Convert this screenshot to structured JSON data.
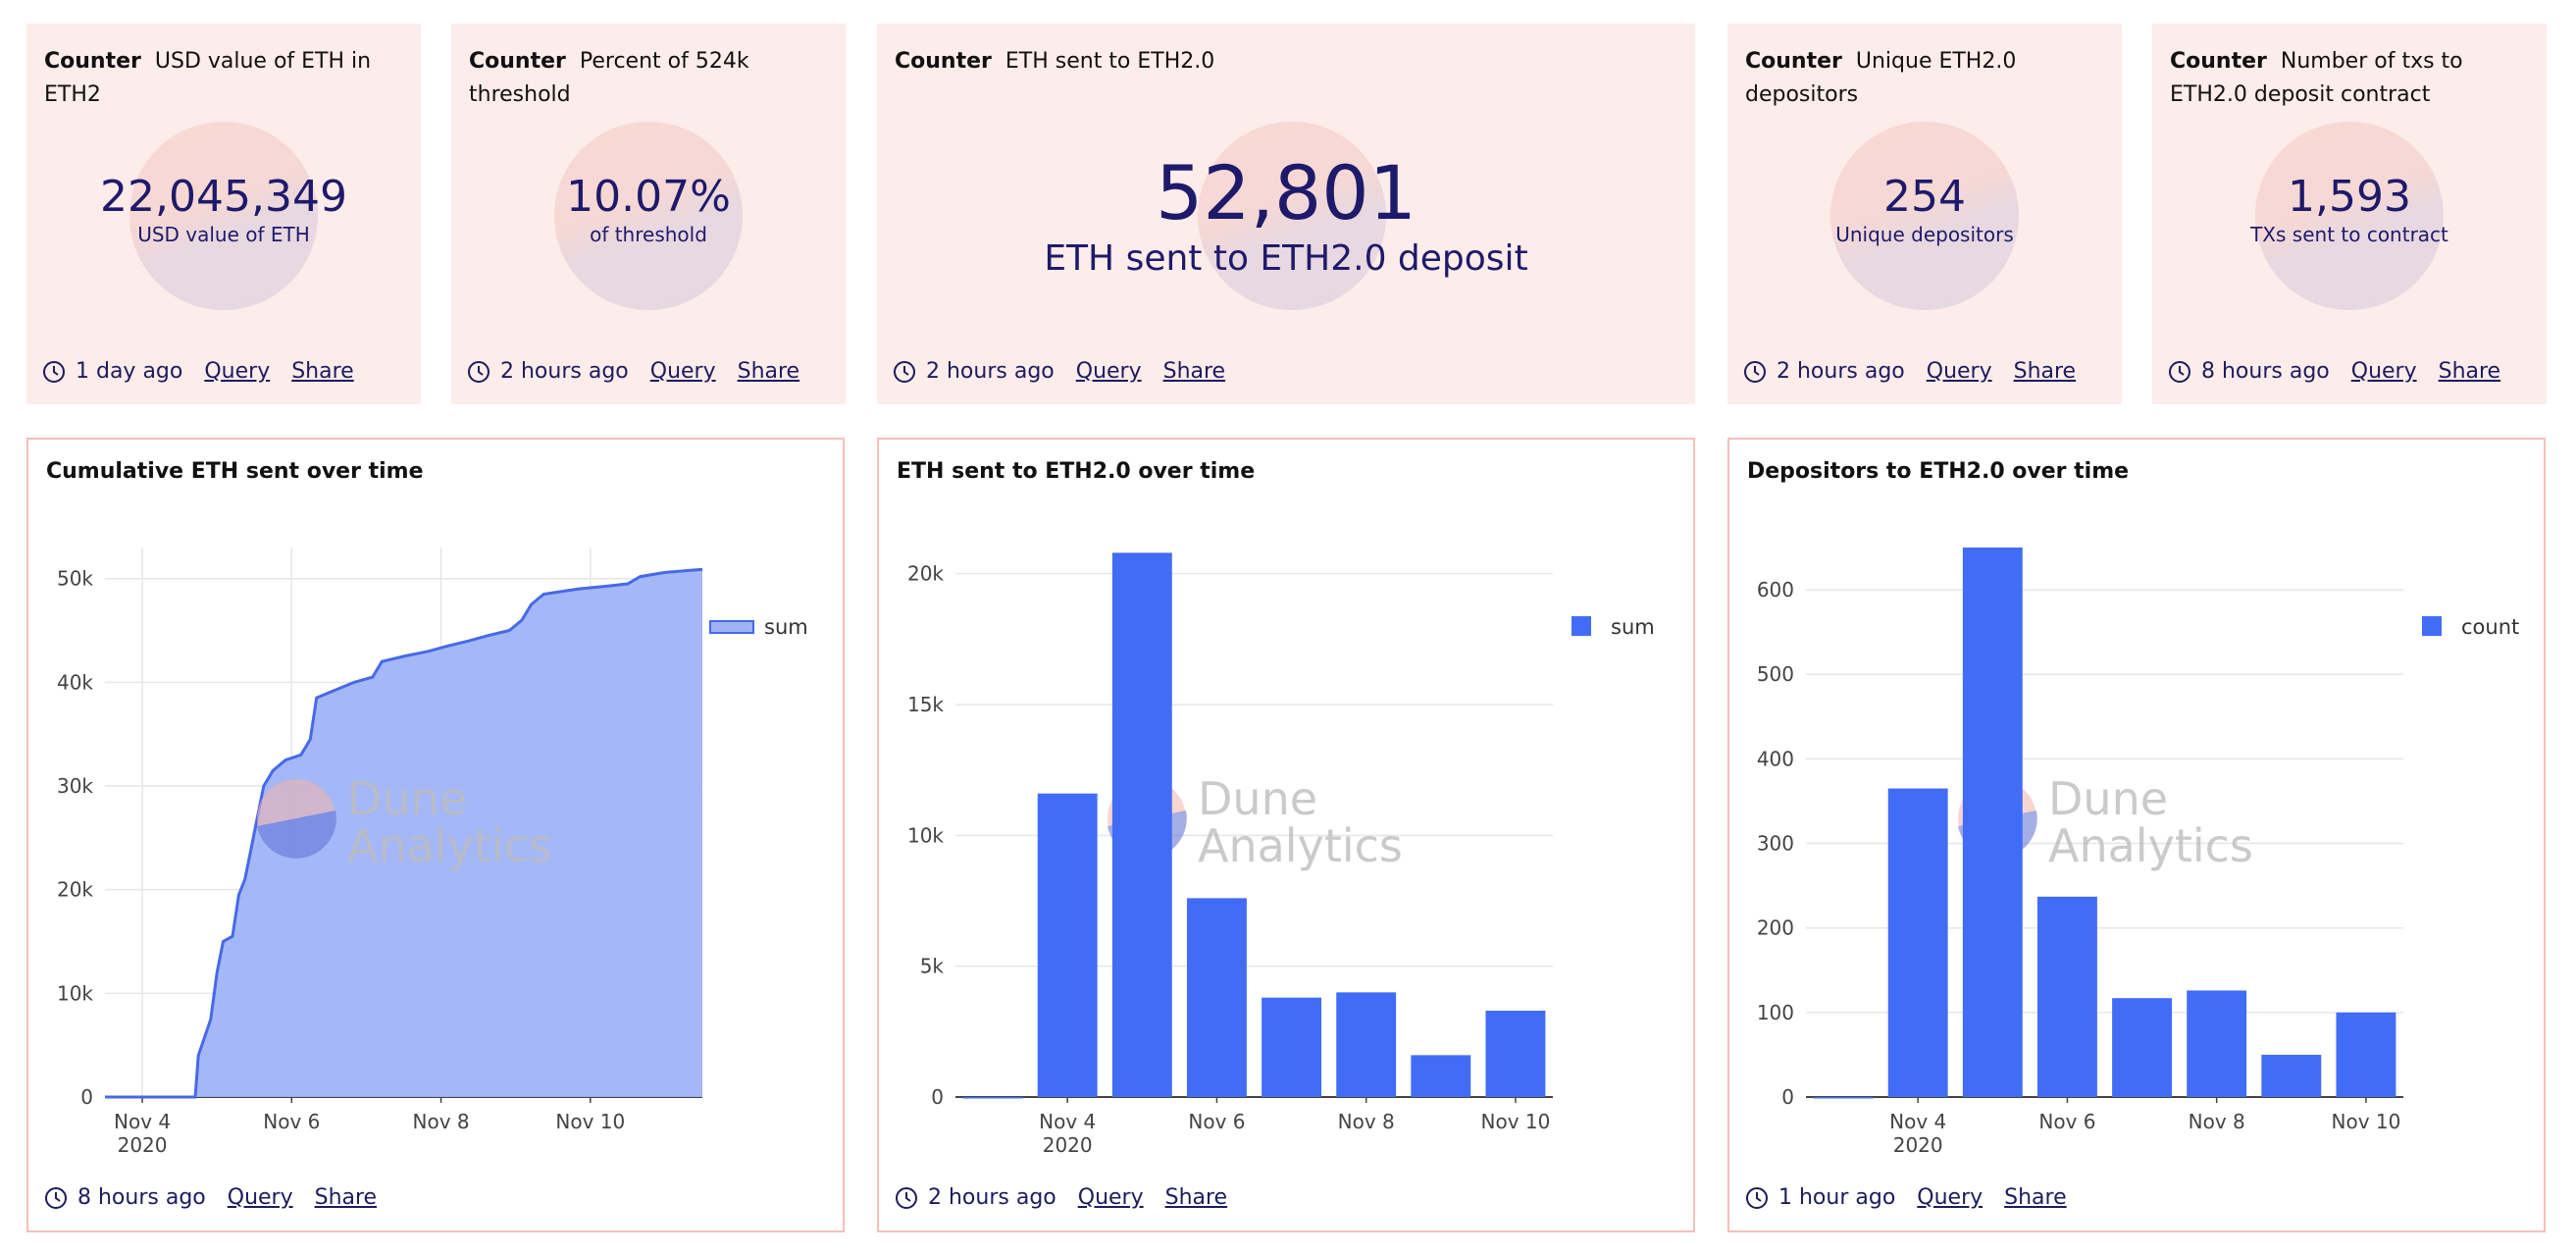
{
  "colors": {
    "counter_bg": "#fcecea",
    "border": "#f4c0b9",
    "bar": "#416cf5",
    "area": "#9fb3f5",
    "line": "#4669e9",
    "text": "#1e1a6b"
  },
  "icons": {
    "footer": "clock-icon",
    "watermark": "dune-logo-icon"
  },
  "counters": [
    {
      "kind": "Counter",
      "title": "USD value of ETH in ETH2",
      "value": "22,045,349",
      "sub": "USD value of ETH",
      "time": "1 day ago",
      "query": "Query",
      "share": "Share"
    },
    {
      "kind": "Counter",
      "title": "Percent of 524k threshold",
      "value": "10.07%",
      "sub": "of threshold",
      "time": "2 hours ago",
      "query": "Query",
      "share": "Share"
    },
    {
      "kind": "Counter",
      "title": "ETH sent to ETH2.0",
      "value": "52,801",
      "sub": "ETH sent to ETH2.0 deposit",
      "time": "2 hours ago",
      "query": "Query",
      "share": "Share"
    },
    {
      "kind": "Counter",
      "title": "Unique ETH2.0 depositors",
      "value": "254",
      "sub": "Unique depositors",
      "time": "2 hours ago",
      "query": "Query",
      "share": "Share"
    },
    {
      "kind": "Counter",
      "title": "Number of txs to ETH2.0 deposit contract",
      "value": "1,593",
      "sub": "TXs sent to contract",
      "time": "8 hours ago",
      "query": "Query",
      "share": "Share"
    }
  ],
  "charts": [
    {
      "title": "Cumulative ETH sent over time",
      "time": "8 hours ago",
      "query": "Query",
      "share": "Share"
    },
    {
      "title": "ETH sent to ETH2.0 over time",
      "time": "2 hours ago",
      "query": "Query",
      "share": "Share"
    },
    {
      "title": "Depositors to ETH2.0 over time",
      "time": "1 hour ago",
      "query": "Query",
      "share": "Share"
    }
  ],
  "watermark": {
    "line1": "Dune",
    "line2": "Analytics"
  },
  "chart_data": [
    {
      "type": "area",
      "title": "Cumulative ETH sent over time",
      "series": [
        {
          "name": "sum",
          "points": [
            [
              "2020-11-03T12:00",
              0
            ],
            [
              "2020-11-04T12:00",
              0
            ],
            [
              "2020-11-04T17:00",
              0
            ],
            [
              "2020-11-04T18:00",
              4000
            ],
            [
              "2020-11-04T22:00",
              7500
            ],
            [
              "2020-11-05T00:00",
              12000
            ],
            [
              "2020-11-05T02:00",
              15000
            ],
            [
              "2020-11-05T05:00",
              15500
            ],
            [
              "2020-11-05T07:00",
              19500
            ],
            [
              "2020-11-05T09:00",
              21000
            ],
            [
              "2020-11-05T11:00",
              24000
            ],
            [
              "2020-11-05T13:00",
              27000
            ],
            [
              "2020-11-05T15:00",
              30000
            ],
            [
              "2020-11-05T18:00",
              31500
            ],
            [
              "2020-11-05T22:00",
              32500
            ],
            [
              "2020-11-06T03:00",
              33000
            ],
            [
              "2020-11-06T06:00",
              34500
            ],
            [
              "2020-11-06T08:00",
              38500
            ],
            [
              "2020-11-06T12:00",
              39000
            ],
            [
              "2020-11-06T16:00",
              39500
            ],
            [
              "2020-11-06T20:00",
              40000
            ],
            [
              "2020-11-07T02:00",
              40500
            ],
            [
              "2020-11-07T05:00",
              42000
            ],
            [
              "2020-11-07T12:00",
              42500
            ],
            [
              "2020-11-07T20:00",
              43000
            ],
            [
              "2020-11-08T02:00",
              43500
            ],
            [
              "2020-11-08T09:00",
              44000
            ],
            [
              "2020-11-08T15:00",
              44500
            ],
            [
              "2020-11-08T22:00",
              45000
            ],
            [
              "2020-11-09T02:00",
              46000
            ],
            [
              "2020-11-09T05:00",
              47500
            ],
            [
              "2020-11-09T09:00",
              48500
            ],
            [
              "2020-11-09T20:00",
              49000
            ],
            [
              "2020-11-10T06:00",
              49300
            ],
            [
              "2020-11-10T12:00",
              49500
            ],
            [
              "2020-11-10T16:00",
              50200
            ],
            [
              "2020-11-11T00:00",
              50600
            ],
            [
              "2020-11-11T12:00",
              50900
            ]
          ]
        }
      ],
      "x_ticks": [
        [
          "2020-11-04",
          "Nov 4"
        ],
        [
          "2020-11-06",
          "Nov 6"
        ],
        [
          "2020-11-08",
          "Nov 8"
        ],
        [
          "2020-11-10",
          "Nov 10"
        ]
      ],
      "x_year_label": "2020",
      "x_range": [
        "2020-11-03T12:00",
        "2020-11-11T12:00"
      ],
      "y_ticks": [
        [
          0,
          "0"
        ],
        [
          10000,
          "10k"
        ],
        [
          20000,
          "20k"
        ],
        [
          30000,
          "30k"
        ],
        [
          40000,
          "40k"
        ],
        [
          50000,
          "50k"
        ]
      ],
      "ylim": [
        0,
        53000
      ],
      "grid": true,
      "legend": "top-right"
    },
    {
      "type": "bar",
      "title": "ETH sent to ETH2.0 over time",
      "categories": [
        "2020-11-03",
        "2020-11-04",
        "2020-11-05",
        "2020-11-06",
        "2020-11-07",
        "2020-11-08",
        "2020-11-09",
        "2020-11-10"
      ],
      "series": [
        {
          "name": "sum",
          "values": [
            0,
            11600,
            20800,
            7600,
            3800,
            4000,
            1600,
            3300
          ]
        }
      ],
      "x_ticks": [
        [
          "2020-11-04",
          "Nov 4"
        ],
        [
          "2020-11-06",
          "Nov 6"
        ],
        [
          "2020-11-08",
          "Nov 8"
        ],
        [
          "2020-11-10",
          "Nov 10"
        ]
      ],
      "x_year_label": "2020",
      "y_ticks": [
        [
          0,
          "0"
        ],
        [
          5000,
          "5k"
        ],
        [
          10000,
          "10k"
        ],
        [
          15000,
          "15k"
        ],
        [
          20000,
          "20k"
        ]
      ],
      "ylim": [
        0,
        21000
      ],
      "grid": true,
      "legend": "top-right"
    },
    {
      "type": "bar",
      "title": "Depositors to ETH2.0 over time",
      "categories": [
        "2020-11-03",
        "2020-11-04",
        "2020-11-05",
        "2020-11-06",
        "2020-11-07",
        "2020-11-08",
        "2020-11-09",
        "2020-11-10"
      ],
      "series": [
        {
          "name": "count",
          "values": [
            0,
            365,
            650,
            237,
            117,
            126,
            50,
            100
          ]
        }
      ],
      "x_ticks": [
        [
          "2020-11-04",
          "Nov 4"
        ],
        [
          "2020-11-06",
          "Nov 6"
        ],
        [
          "2020-11-08",
          "Nov 8"
        ],
        [
          "2020-11-10",
          "Nov 10"
        ]
      ],
      "x_year_label": "2020",
      "y_ticks": [
        [
          0,
          "0"
        ],
        [
          100,
          "100"
        ],
        [
          200,
          "200"
        ],
        [
          300,
          "300"
        ],
        [
          400,
          "400"
        ],
        [
          500,
          "500"
        ],
        [
          600,
          "600"
        ]
      ],
      "ylim": [
        0,
        650
      ],
      "grid": true,
      "legend": "top-right"
    }
  ]
}
